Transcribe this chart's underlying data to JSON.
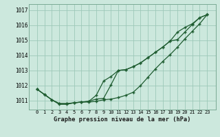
{
  "title": "Graphe pression niveau de la mer (hPa)",
  "bg_color": "#cce8dd",
  "grid_color": "#9dc8b8",
  "line_color": "#1e5c30",
  "ylim": [
    1010.4,
    1017.4
  ],
  "yticks": [
    1011,
    1012,
    1013,
    1014,
    1015,
    1016,
    1017
  ],
  "x_labels": [
    "0",
    "1",
    "2",
    "3",
    "4",
    "5",
    "6",
    "7",
    "8",
    "9",
    "10",
    "11",
    "12",
    "13",
    "14",
    "15",
    "16",
    "17",
    "18",
    "19",
    "20",
    "21",
    "22",
    "23"
  ],
  "s1": [
    1011.75,
    1011.4,
    1011.05,
    1010.75,
    1010.75,
    1010.85,
    1010.9,
    1010.9,
    1010.95,
    1011.05,
    1011.1,
    1011.2,
    1011.35,
    1011.55,
    1012.0,
    1012.55,
    1013.1,
    1013.6,
    1014.05,
    1014.55,
    1015.1,
    1015.6,
    1016.1,
    1016.7
  ],
  "s2": [
    1011.75,
    1011.4,
    1011.05,
    1010.8,
    1010.8,
    1010.85,
    1010.9,
    1010.95,
    1011.35,
    1012.3,
    1012.6,
    1013.0,
    1013.05,
    1013.25,
    1013.5,
    1013.85,
    1014.2,
    1014.55,
    1014.95,
    1015.55,
    1015.85,
    1016.1,
    1016.5,
    1016.7
  ],
  "s3": [
    1011.75,
    1011.4,
    1011.05,
    1010.8,
    1010.8,
    1010.85,
    1010.9,
    1010.95,
    1011.1,
    1011.15,
    1012.05,
    1013.0,
    1013.05,
    1013.25,
    1013.5,
    1013.85,
    1014.2,
    1014.55,
    1014.95,
    1015.05,
    1015.55,
    1016.05,
    1016.5,
    1016.7
  ]
}
